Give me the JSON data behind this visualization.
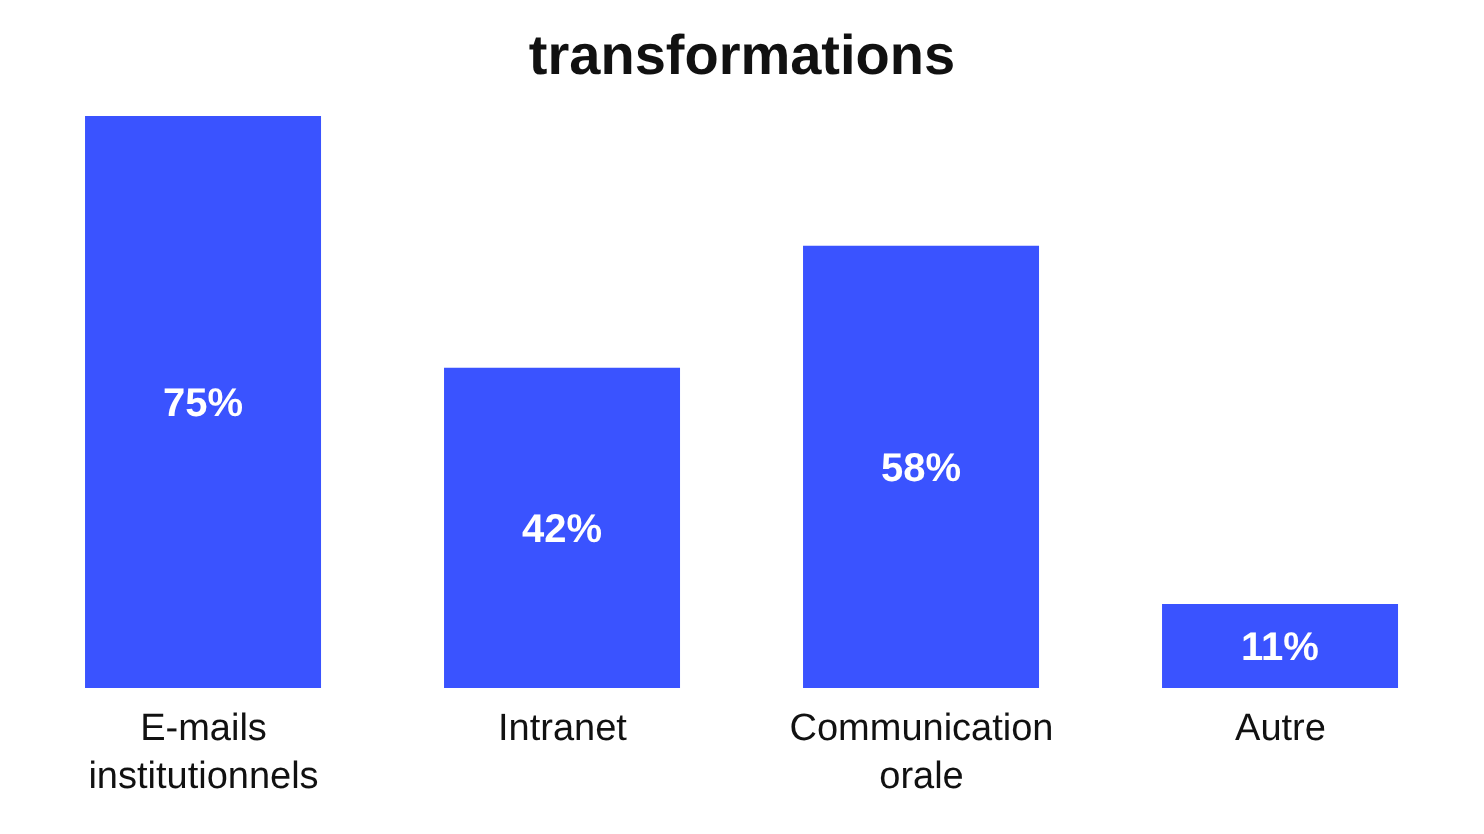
{
  "chart_data": {
    "type": "bar",
    "title": "transformations",
    "categories": [
      "E-mails institutionnels",
      "Intranet",
      "Communication orale",
      "Autre"
    ],
    "values": [
      75,
      42,
      58,
      11
    ],
    "value_labels": [
      "75%",
      "42%",
      "58%",
      "11%"
    ],
    "color": "#3a53ff",
    "grid": false,
    "legend": false
  }
}
